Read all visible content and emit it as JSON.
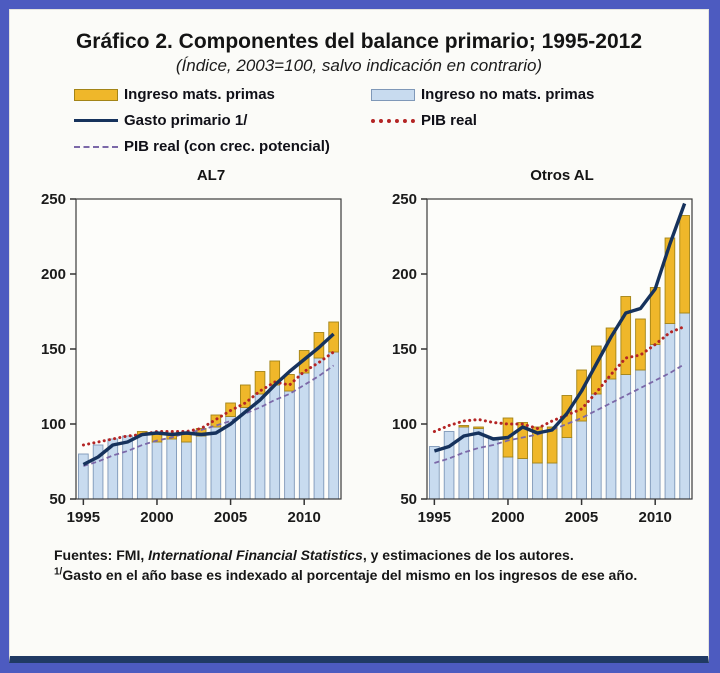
{
  "header": {
    "title": "Gráfico 2. Componentes del balance primario; 1995-2012",
    "subtitle": "(Índice, 2003=100, salvo indicación en contrario)"
  },
  "colors": {
    "frame": "#4D5BC0",
    "bottom_rule": "#203A64",
    "commodity_fill": "#EFB72A",
    "commodity_border": "#A38417",
    "non_commodity_fill": "#C8DBEF",
    "non_commodity_border": "#7F98B8",
    "gasto_line": "#16325C",
    "pib_real_line": "#B42525",
    "pib_potencial_line": "#7B68A8",
    "plot_bg": "#FDFDFA"
  },
  "legend": {
    "items": [
      {
        "label": "Ingreso mats. primas",
        "swatch": "bar",
        "color": "#EFB72A",
        "border": "#A38417"
      },
      {
        "label": "Ingreso no mats. primas",
        "swatch": "bar",
        "color": "#C8DBEF",
        "border": "#7F98B8"
      },
      {
        "label": "Gasto primario 1/",
        "swatch": "line-solid",
        "color": "#16325C"
      },
      {
        "label": "PIB real",
        "swatch": "line-dotted",
        "color": "#B42525"
      },
      {
        "label": "PIB real (con crec. potencial)",
        "swatch": "line-dashed",
        "color": "#7B68A8"
      }
    ]
  },
  "chart_data": [
    {
      "id": "al7",
      "type": "bar",
      "title": "AL7",
      "stacked": true,
      "stack_note": "bar-lower values are the top of the light-blue segment; bar-upper values are the total bar top (yellow segment spans between them); bars rise from the 50 axis",
      "x": [
        1995,
        1996,
        1997,
        1998,
        1999,
        2000,
        2001,
        2002,
        2003,
        2004,
        2005,
        2006,
        2007,
        2008,
        2009,
        2010,
        2011,
        2012
      ],
      "x_ticks": [
        1995,
        2000,
        2005,
        2010
      ],
      "ylim": [
        50,
        250
      ],
      "y_ticks": [
        50,
        100,
        150,
        200,
        250
      ],
      "grid": false,
      "series": [
        {
          "name": "Ingreso no mats. primas",
          "role": "bar-lower",
          "color": "#C8DBEF",
          "border": "#7F98B8",
          "values": [
            80,
            86,
            90,
            92,
            93,
            88,
            90,
            88,
            92,
            98,
            105,
            111,
            120,
            126,
            122,
            134,
            144,
            148
          ]
        },
        {
          "name": "Ingreso mats. primas",
          "role": "bar-upper",
          "color": "#EFB72A",
          "border": "#A38417",
          "values": [
            80,
            86,
            90,
            92,
            95,
            94,
            94,
            93,
            97,
            106,
            114,
            126,
            135,
            142,
            133,
            149,
            161,
            168
          ]
        },
        {
          "name": "Gasto primario 1/",
          "role": "line",
          "style": "solid",
          "color": "#16325C",
          "values": [
            73,
            78,
            86,
            88,
            93,
            94,
            93,
            94,
            93,
            94,
            100,
            108,
            116,
            126,
            135,
            143,
            151,
            160
          ]
        },
        {
          "name": "PIB real",
          "role": "line",
          "style": "dotted",
          "color": "#B42525",
          "values": [
            86,
            88,
            90,
            92,
            93,
            95,
            95,
            95,
            97,
            103,
            109,
            114,
            122,
            128,
            126,
            135,
            141,
            148
          ]
        },
        {
          "name": "PIB real (con crec. potencial)",
          "role": "line",
          "style": "dashed",
          "color": "#7B68A8",
          "values": [
            72,
            75,
            79,
            82,
            86,
            89,
            91,
            94,
            96,
            99,
            102,
            107,
            111,
            116,
            120,
            126,
            132,
            139
          ]
        }
      ]
    },
    {
      "id": "otros-al",
      "type": "bar",
      "title": "Otros AL",
      "stacked": true,
      "stack_note": "bar-lower values are the top of the light-blue segment; bar-upper values are the total bar top (yellow segment spans between them); bars rise from the 50 axis",
      "x": [
        1995,
        1996,
        1997,
        1998,
        1999,
        2000,
        2001,
        2002,
        2003,
        2004,
        2005,
        2006,
        2007,
        2008,
        2009,
        2010,
        2011,
        2012
      ],
      "x_ticks": [
        1995,
        2000,
        2005,
        2010
      ],
      "ylim": [
        50,
        250
      ],
      "y_ticks": [
        50,
        100,
        150,
        200,
        250
      ],
      "grid": false,
      "series": [
        {
          "name": "Ingreso no mats. primas",
          "role": "bar-lower",
          "color": "#C8DBEF",
          "border": "#7F98B8",
          "values": [
            85,
            95,
            98,
            97,
            91,
            78,
            77,
            74,
            74,
            91,
            102,
            120,
            130,
            133,
            136,
            153,
            167,
            174
          ]
        },
        {
          "name": "Ingreso mats. primas",
          "role": "bar-upper",
          "color": "#EFB72A",
          "border": "#A38417",
          "values": [
            85,
            95,
            99,
            98,
            91,
            104,
            101,
            98,
            98,
            119,
            136,
            152,
            164,
            185,
            170,
            191,
            224,
            239
          ]
        },
        {
          "name": "Gasto primario 1/",
          "role": "line",
          "style": "solid",
          "color": "#16325C",
          "values": [
            82,
            85,
            92,
            94,
            90,
            91,
            98,
            94,
            96,
            107,
            122,
            140,
            158,
            174,
            177,
            190,
            220,
            247
          ]
        },
        {
          "name": "PIB real",
          "role": "line",
          "style": "dotted",
          "color": "#B42525",
          "values": [
            95,
            99,
            102,
            103,
            101,
            100,
            100,
            97,
            102,
            106,
            110,
            121,
            133,
            144,
            146,
            153,
            161,
            165
          ]
        },
        {
          "name": "PIB real (con crec. potencial)",
          "role": "line",
          "style": "dashed",
          "color": "#7B68A8",
          "values": [
            74,
            77,
            81,
            84,
            86,
            89,
            91,
            93,
            96,
            100,
            104,
            109,
            114,
            119,
            124,
            129,
            134,
            140
          ]
        }
      ]
    }
  ],
  "footnotes": {
    "fuentes_prefix": "Fuentes: FMI, ",
    "fuentes_italic": "International Financial Statistics",
    "fuentes_suffix": ", y estimaciones de los autores.",
    "note_sup": "1/",
    "note_text": "Gasto en el año base es indexado al porcentaje del mismo en los ingresos de ese año."
  }
}
